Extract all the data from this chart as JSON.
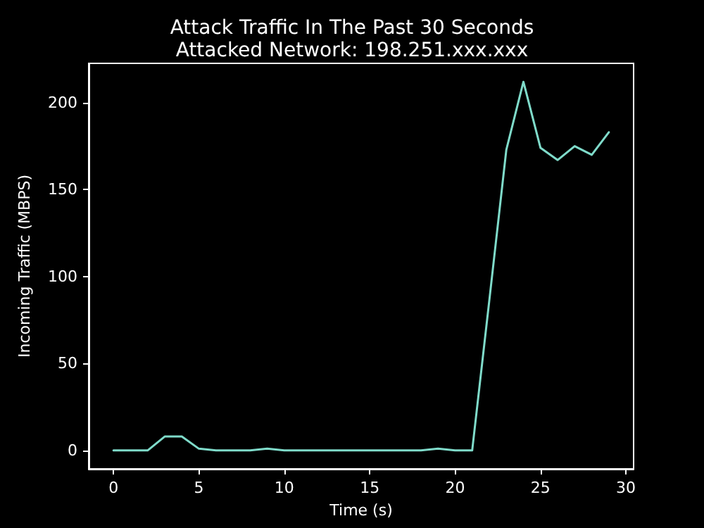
{
  "chart_data": {
    "type": "line",
    "title": "Attack Traffic In The Past 30 Seconds",
    "subtitle": "Attacked Network: 198.251.xxx.xxx",
    "xlabel": "Time (s)",
    "ylabel": "Incoming Traffic (MBPS)",
    "x": [
      0,
      1,
      2,
      3,
      4,
      5,
      6,
      7,
      8,
      9,
      10,
      11,
      12,
      13,
      14,
      15,
      16,
      17,
      18,
      19,
      20,
      21,
      22,
      23,
      24,
      25,
      26,
      27,
      28,
      29
    ],
    "series": [
      {
        "color": "#7fdbca",
        "values": [
          0,
          0,
          0,
          8,
          8,
          1,
          0,
          0,
          0,
          1,
          0,
          0,
          0,
          0,
          0,
          0,
          0,
          0,
          0,
          1,
          0,
          0,
          86,
          173,
          212,
          174,
          167,
          175,
          170,
          183
        ]
      }
    ],
    "xlim": [
      -1.45,
      30.45
    ],
    "ylim": [
      -10.6,
      222.6
    ],
    "xticks": [
      0,
      5,
      10,
      15,
      20,
      25,
      30
    ],
    "yticks": [
      0,
      50,
      100,
      150,
      200
    ],
    "grid": false,
    "marker": "none",
    "line_style": "solid"
  }
}
